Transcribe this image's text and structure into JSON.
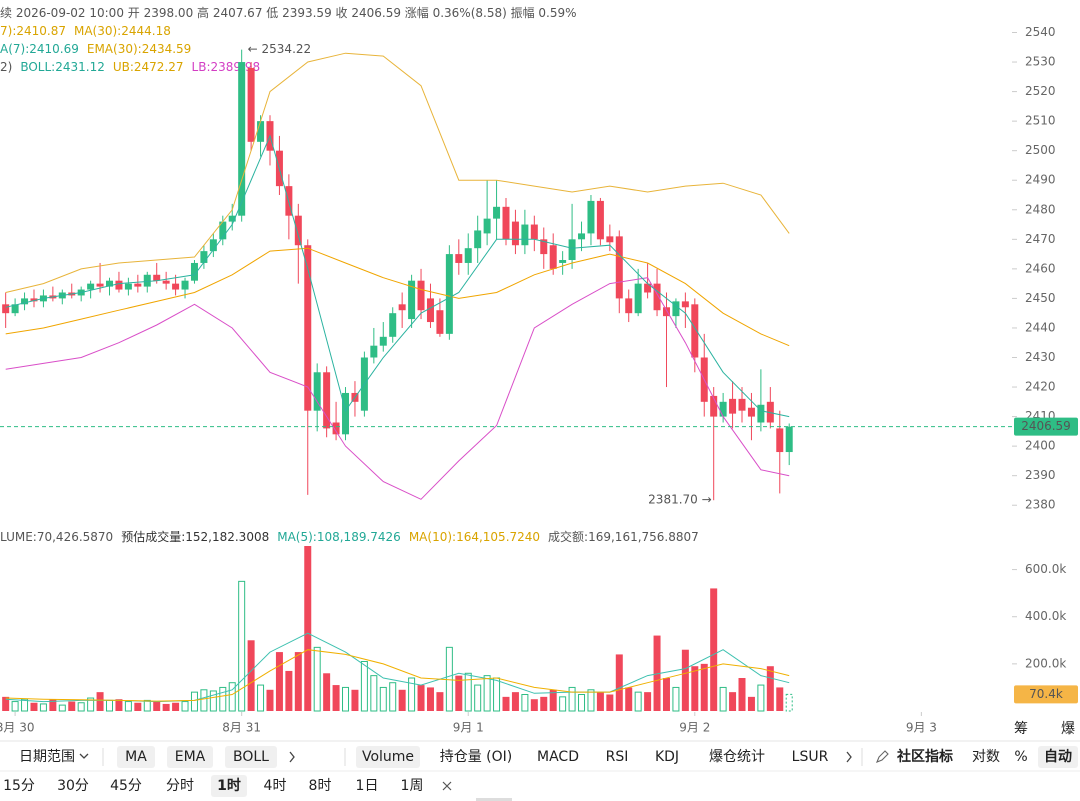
{
  "header": {
    "lines": [
      [
        {
          "text": "续  2026-09-02 10:00  开 2398.00  高 2407.67  低 2393.59  收 2406.59  涨幅 0.36%(8.58)  振幅 0.59%",
          "color": "#555"
        }
      ],
      [
        {
          "text": "7):2410.87",
          "color": "#d9a400"
        },
        {
          "text": "MA(30):2444.18",
          "color": "#d9a400"
        }
      ],
      [
        {
          "text": "A(7):2410.69",
          "color": "#22a896"
        },
        {
          "text": "EMA(30):2434.59",
          "color": "#d9a400"
        }
      ],
      [
        {
          "text": "2)",
          "color": "#555"
        },
        {
          "text": "BOLL:2431.12",
          "color": "#22a896"
        },
        {
          "text": "UB:2472.27",
          "color": "#d9a400"
        },
        {
          "text": "LB:2389.98",
          "color": "#d33ec4"
        }
      ]
    ]
  },
  "chart_data": [
    {
      "type": "candlestick",
      "up_color": "#2ebd85",
      "down_color": "#f0475a",
      "open": [
        2448,
        2445,
        2448,
        2450,
        2449,
        2451,
        2450,
        2452,
        2451,
        2453,
        2455,
        2454,
        2456,
        2453,
        2455,
        2454,
        2458,
        2456,
        2455,
        2453,
        2456,
        2462,
        2466,
        2470,
        2476,
        2478,
        2528,
        2503,
        2510,
        2500,
        2488,
        2478,
        2468,
        2412,
        2425,
        2408,
        2404,
        2418,
        2412,
        2430,
        2434,
        2437,
        2448,
        2443,
        2456,
        2450,
        2446,
        2438,
        2465,
        2462,
        2467,
        2472,
        2477,
        2481,
        2476,
        2468,
        2475,
        2470,
        2468,
        2462,
        2463,
        2470,
        2472,
        2483,
        2471,
        2471,
        2450,
        2445,
        2455,
        2455,
        2447,
        2444,
        2449,
        2448,
        2430,
        2417,
        2410,
        2416,
        2416,
        2413,
        2408,
        2415,
        2406,
        2398
      ],
      "high": [
        2452,
        2450,
        2452,
        2453,
        2453,
        2454,
        2453,
        2455,
        2454,
        2456,
        2462,
        2457,
        2459,
        2457,
        2458,
        2459,
        2462,
        2459,
        2458,
        2457,
        2463,
        2468,
        2472,
        2478,
        2482,
        2534.22,
        2530,
        2512,
        2512,
        2505,
        2492,
        2482,
        2470,
        2428,
        2427,
        2415,
        2420,
        2422,
        2432,
        2440,
        2442,
        2447,
        2452,
        2458,
        2460,
        2455,
        2450,
        2468,
        2470,
        2472,
        2478,
        2490,
        2490,
        2484,
        2480,
        2480,
        2478,
        2474,
        2472,
        2466,
        2482,
        2476,
        2485,
        2484,
        2475,
        2473,
        2453,
        2460,
        2462,
        2460,
        2452,
        2450,
        2452,
        2450,
        2438,
        2420,
        2418,
        2422,
        2420,
        2418,
        2426,
        2420,
        2412,
        2407.67
      ],
      "low": [
        2440,
        2444,
        2446,
        2447,
        2447,
        2449,
        2448,
        2450,
        2449,
        2450,
        2452,
        2451,
        2452,
        2451,
        2452,
        2452,
        2455,
        2453,
        2451,
        2450,
        2455,
        2460,
        2464,
        2468,
        2473,
        2476,
        2500,
        2498,
        2495,
        2485,
        2470,
        2455,
        2383.5,
        2405,
        2403,
        2402,
        2402,
        2410,
        2410,
        2428,
        2432,
        2435,
        2440,
        2440,
        2443,
        2440,
        2437,
        2436,
        2458,
        2458,
        2462,
        2468,
        2470,
        2468,
        2465,
        2465,
        2466,
        2460,
        2458,
        2458,
        2460,
        2466,
        2468,
        2468,
        2466,
        2445,
        2442,
        2444,
        2450,
        2444,
        2420,
        2440,
        2440,
        2425,
        2410,
        2381.7,
        2408,
        2406,
        2408,
        2402,
        2405,
        2406,
        2384,
        2393.59
      ],
      "close": [
        2445,
        2448,
        2450,
        2449,
        2451,
        2450,
        2452,
        2451,
        2453,
        2455,
        2454,
        2456,
        2453,
        2455,
        2454,
        2458,
        2456,
        2455,
        2453,
        2456,
        2462,
        2466,
        2470,
        2476,
        2478,
        2530,
        2503,
        2510,
        2500,
        2488,
        2478,
        2468,
        2412,
        2425,
        2406,
        2404,
        2418,
        2415,
        2430,
        2434,
        2437,
        2445,
        2446,
        2456,
        2446,
        2442,
        2438,
        2465,
        2462,
        2467,
        2473,
        2477,
        2481,
        2470,
        2468,
        2475,
        2470,
        2465,
        2460,
        2463,
        2470,
        2472,
        2483,
        2470,
        2469,
        2450,
        2445,
        2455,
        2452,
        2446,
        2444,
        2449,
        2447,
        2430,
        2415,
        2410,
        2415,
        2411,
        2412,
        2410,
        2414,
        2408,
        2398,
        2406.59
      ],
      "xlim": [
        -0.6,
        106.6
      ],
      "xticks": [
        {
          "value": 1,
          "label": "8月 30"
        },
        {
          "value": 25,
          "label": "8月 31"
        },
        {
          "value": 49,
          "label": "9月 1"
        },
        {
          "value": 73,
          "label": "9月 2"
        },
        {
          "value": 97,
          "label": "9月 3"
        }
      ],
      "ylim": [
        2375,
        2551
      ],
      "yticks": [
        2380,
        2390,
        2400,
        2410,
        2420,
        2430,
        2440,
        2450,
        2460,
        2470,
        2480,
        2490,
        2500,
        2510,
        2520,
        2530,
        2540
      ],
      "overlays": [
        {
          "color": "#e8b43a",
          "x": [
            0,
            4,
            8,
            12,
            16,
            20,
            24,
            28,
            32,
            36,
            40,
            44,
            48,
            52,
            56,
            60,
            64,
            68,
            72,
            76,
            80,
            83
          ],
          "values": [
            2452,
            2455,
            2460,
            2462,
            2463,
            2464,
            2480,
            2520,
            2530,
            2533,
            2532,
            2522,
            2490,
            2490,
            2488,
            2486,
            2488,
            2486,
            2488,
            2489,
            2485,
            2472
          ]
        },
        {
          "color": "#d94fc8",
          "x": [
            0,
            4,
            8,
            12,
            16,
            20,
            24,
            28,
            32,
            36,
            40,
            44,
            48,
            52,
            56,
            60,
            64,
            68,
            72,
            76,
            80,
            83
          ],
          "values": [
            2426,
            2428,
            2430,
            2435,
            2441,
            2448,
            2440,
            2425,
            2420,
            2400,
            2388,
            2382,
            2395,
            2407,
            2440,
            2448,
            2455,
            2457,
            2435,
            2410,
            2392,
            2390
          ]
        },
        {
          "color": "#f0a500",
          "x": [
            0,
            4,
            8,
            12,
            16,
            20,
            24,
            28,
            32,
            36,
            40,
            44,
            48,
            52,
            56,
            60,
            64,
            68,
            72,
            76,
            80,
            83
          ],
          "values": [
            2438,
            2440,
            2443,
            2446,
            2449,
            2452,
            2458,
            2466,
            2467,
            2462,
            2457,
            2453,
            2450,
            2452,
            2458,
            2462,
            2465,
            2462,
            2455,
            2445,
            2438,
            2434
          ]
        },
        {
          "color": "#2bb3a0",
          "x": [
            0,
            4,
            8,
            12,
            16,
            20,
            24,
            28,
            32,
            36,
            40,
            44,
            48,
            52,
            56,
            60,
            64,
            68,
            72,
            76,
            80,
            83
          ],
          "values": [
            2447,
            2450,
            2452,
            2455,
            2456,
            2458,
            2475,
            2505,
            2460,
            2412,
            2430,
            2445,
            2452,
            2470,
            2470,
            2467,
            2468,
            2455,
            2445,
            2425,
            2412,
            2410
          ]
        }
      ],
      "annotations": [
        "← 2534.22",
        "2381.70 →"
      ],
      "last_price_label": "2406.59"
    },
    {
      "type": "bar",
      "up_color": "#2ebd85",
      "down_color": "#f0475a",
      "header": [
        {
          "text": "LUME:70,426.5870",
          "color": "#555"
        },
        {
          "text": "预估成交量:152,182.3008",
          "color": "#333"
        },
        {
          "text": "MA(5):108,189.7426",
          "color": "#22a896"
        },
        {
          "text": "MA(10):164,105.7240",
          "color": "#d9a400"
        },
        {
          "text": "成交额:169,161,756.8807",
          "color": "#555"
        }
      ],
      "values": [
        60000,
        40000,
        50000,
        35000,
        30000,
        50000,
        25000,
        40000,
        35000,
        55000,
        80000,
        45000,
        50000,
        40000,
        35000,
        45000,
        40000,
        30000,
        35000,
        40000,
        80000,
        90000,
        85000,
        100000,
        120000,
        550000,
        300000,
        110000,
        90000,
        250000,
        170000,
        250000,
        700000,
        270000,
        160000,
        110000,
        100000,
        90000,
        210000,
        150000,
        100000,
        120000,
        90000,
        140000,
        110000,
        100000,
        80000,
        270000,
        150000,
        160000,
        110000,
        150000,
        140000,
        60000,
        80000,
        70000,
        50000,
        60000,
        90000,
        60000,
        100000,
        70000,
        90000,
        80000,
        70000,
        240000,
        100000,
        80000,
        80000,
        320000,
        140000,
        100000,
        260000,
        190000,
        200000,
        520000,
        100000,
        80000,
        140000,
        60000,
        110000,
        190000,
        100000,
        70426.587
      ],
      "ylim": [
        0,
        700000
      ],
      "yticks": [
        {
          "value": 200000,
          "label": "200.0k"
        },
        {
          "value": 400000,
          "label": "400.0k"
        },
        {
          "value": 600000,
          "label": "600.0k"
        }
      ],
      "overlays": [
        {
          "color": "#3ec1b0",
          "x": [
            0,
            4,
            8,
            12,
            16,
            20,
            24,
            28,
            32,
            36,
            40,
            44,
            48,
            52,
            56,
            60,
            64,
            68,
            72,
            76,
            80,
            83
          ],
          "values": [
            50000,
            40000,
            45000,
            45000,
            40000,
            45000,
            90000,
            250000,
            330000,
            250000,
            140000,
            110000,
            160000,
            130000,
            75000,
            80000,
            80000,
            150000,
            180000,
            260000,
            150000,
            120000
          ]
        },
        {
          "color": "#f0b000",
          "x": [
            0,
            4,
            8,
            12,
            16,
            20,
            24,
            28,
            32,
            36,
            40,
            44,
            48,
            52,
            56,
            60,
            64,
            68,
            72,
            76,
            80,
            83
          ],
          "values": [
            55000,
            50000,
            48000,
            45000,
            42000,
            45000,
            70000,
            170000,
            260000,
            240000,
            200000,
            140000,
            130000,
            140000,
            100000,
            80000,
            80000,
            120000,
            160000,
            200000,
            180000,
            150000
          ]
        }
      ],
      "last_value_label": "70.4k"
    }
  ],
  "side_tabs": [
    "筹",
    "爆"
  ],
  "toolbar": {
    "range": "日期范围",
    "indicators": [
      "MA",
      "EMA",
      "BOLL"
    ],
    "sub": [
      "Volume",
      "持仓量 (OI)",
      "MACD",
      "RSI",
      "KDJ",
      "爆仓统计",
      "LSUR"
    ],
    "community": "社区指标",
    "options": [
      "对数",
      "%",
      "自动"
    ]
  },
  "intervals": [
    "15分",
    "30分",
    "45分",
    "分时",
    "1时",
    "4时",
    "8时",
    "1日",
    "1周"
  ]
}
